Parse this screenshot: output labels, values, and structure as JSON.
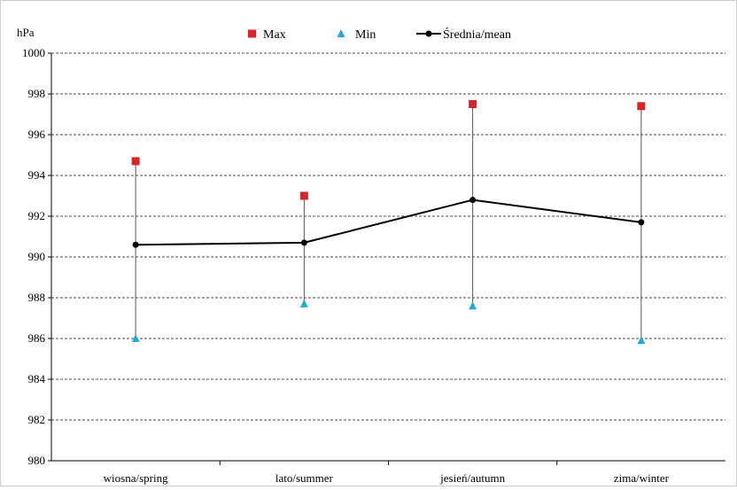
{
  "chart_data": {
    "type": "line",
    "ylabel": "hPa",
    "ylim": [
      980,
      1000
    ],
    "yticks": [
      980,
      982,
      984,
      986,
      988,
      990,
      992,
      994,
      996,
      998,
      1000
    ],
    "grid": true,
    "legend_position": "top",
    "categories": [
      "wiosna/spring",
      "lato/summer",
      "jesień/autumn",
      "zima/winter"
    ],
    "series": [
      {
        "name": "Max",
        "marker": "square",
        "color": "#d9232a",
        "values": [
          994.7,
          993.0,
          997.5,
          997.4
        ]
      },
      {
        "name": "Min",
        "marker": "triangle",
        "color": "#27a9d6",
        "values": [
          986.0,
          987.7,
          987.6,
          985.9
        ]
      },
      {
        "name": "Średnia/mean",
        "marker": "circle-line",
        "color": "#000000",
        "values": [
          990.6,
          990.7,
          992.8,
          991.7
        ]
      }
    ]
  }
}
